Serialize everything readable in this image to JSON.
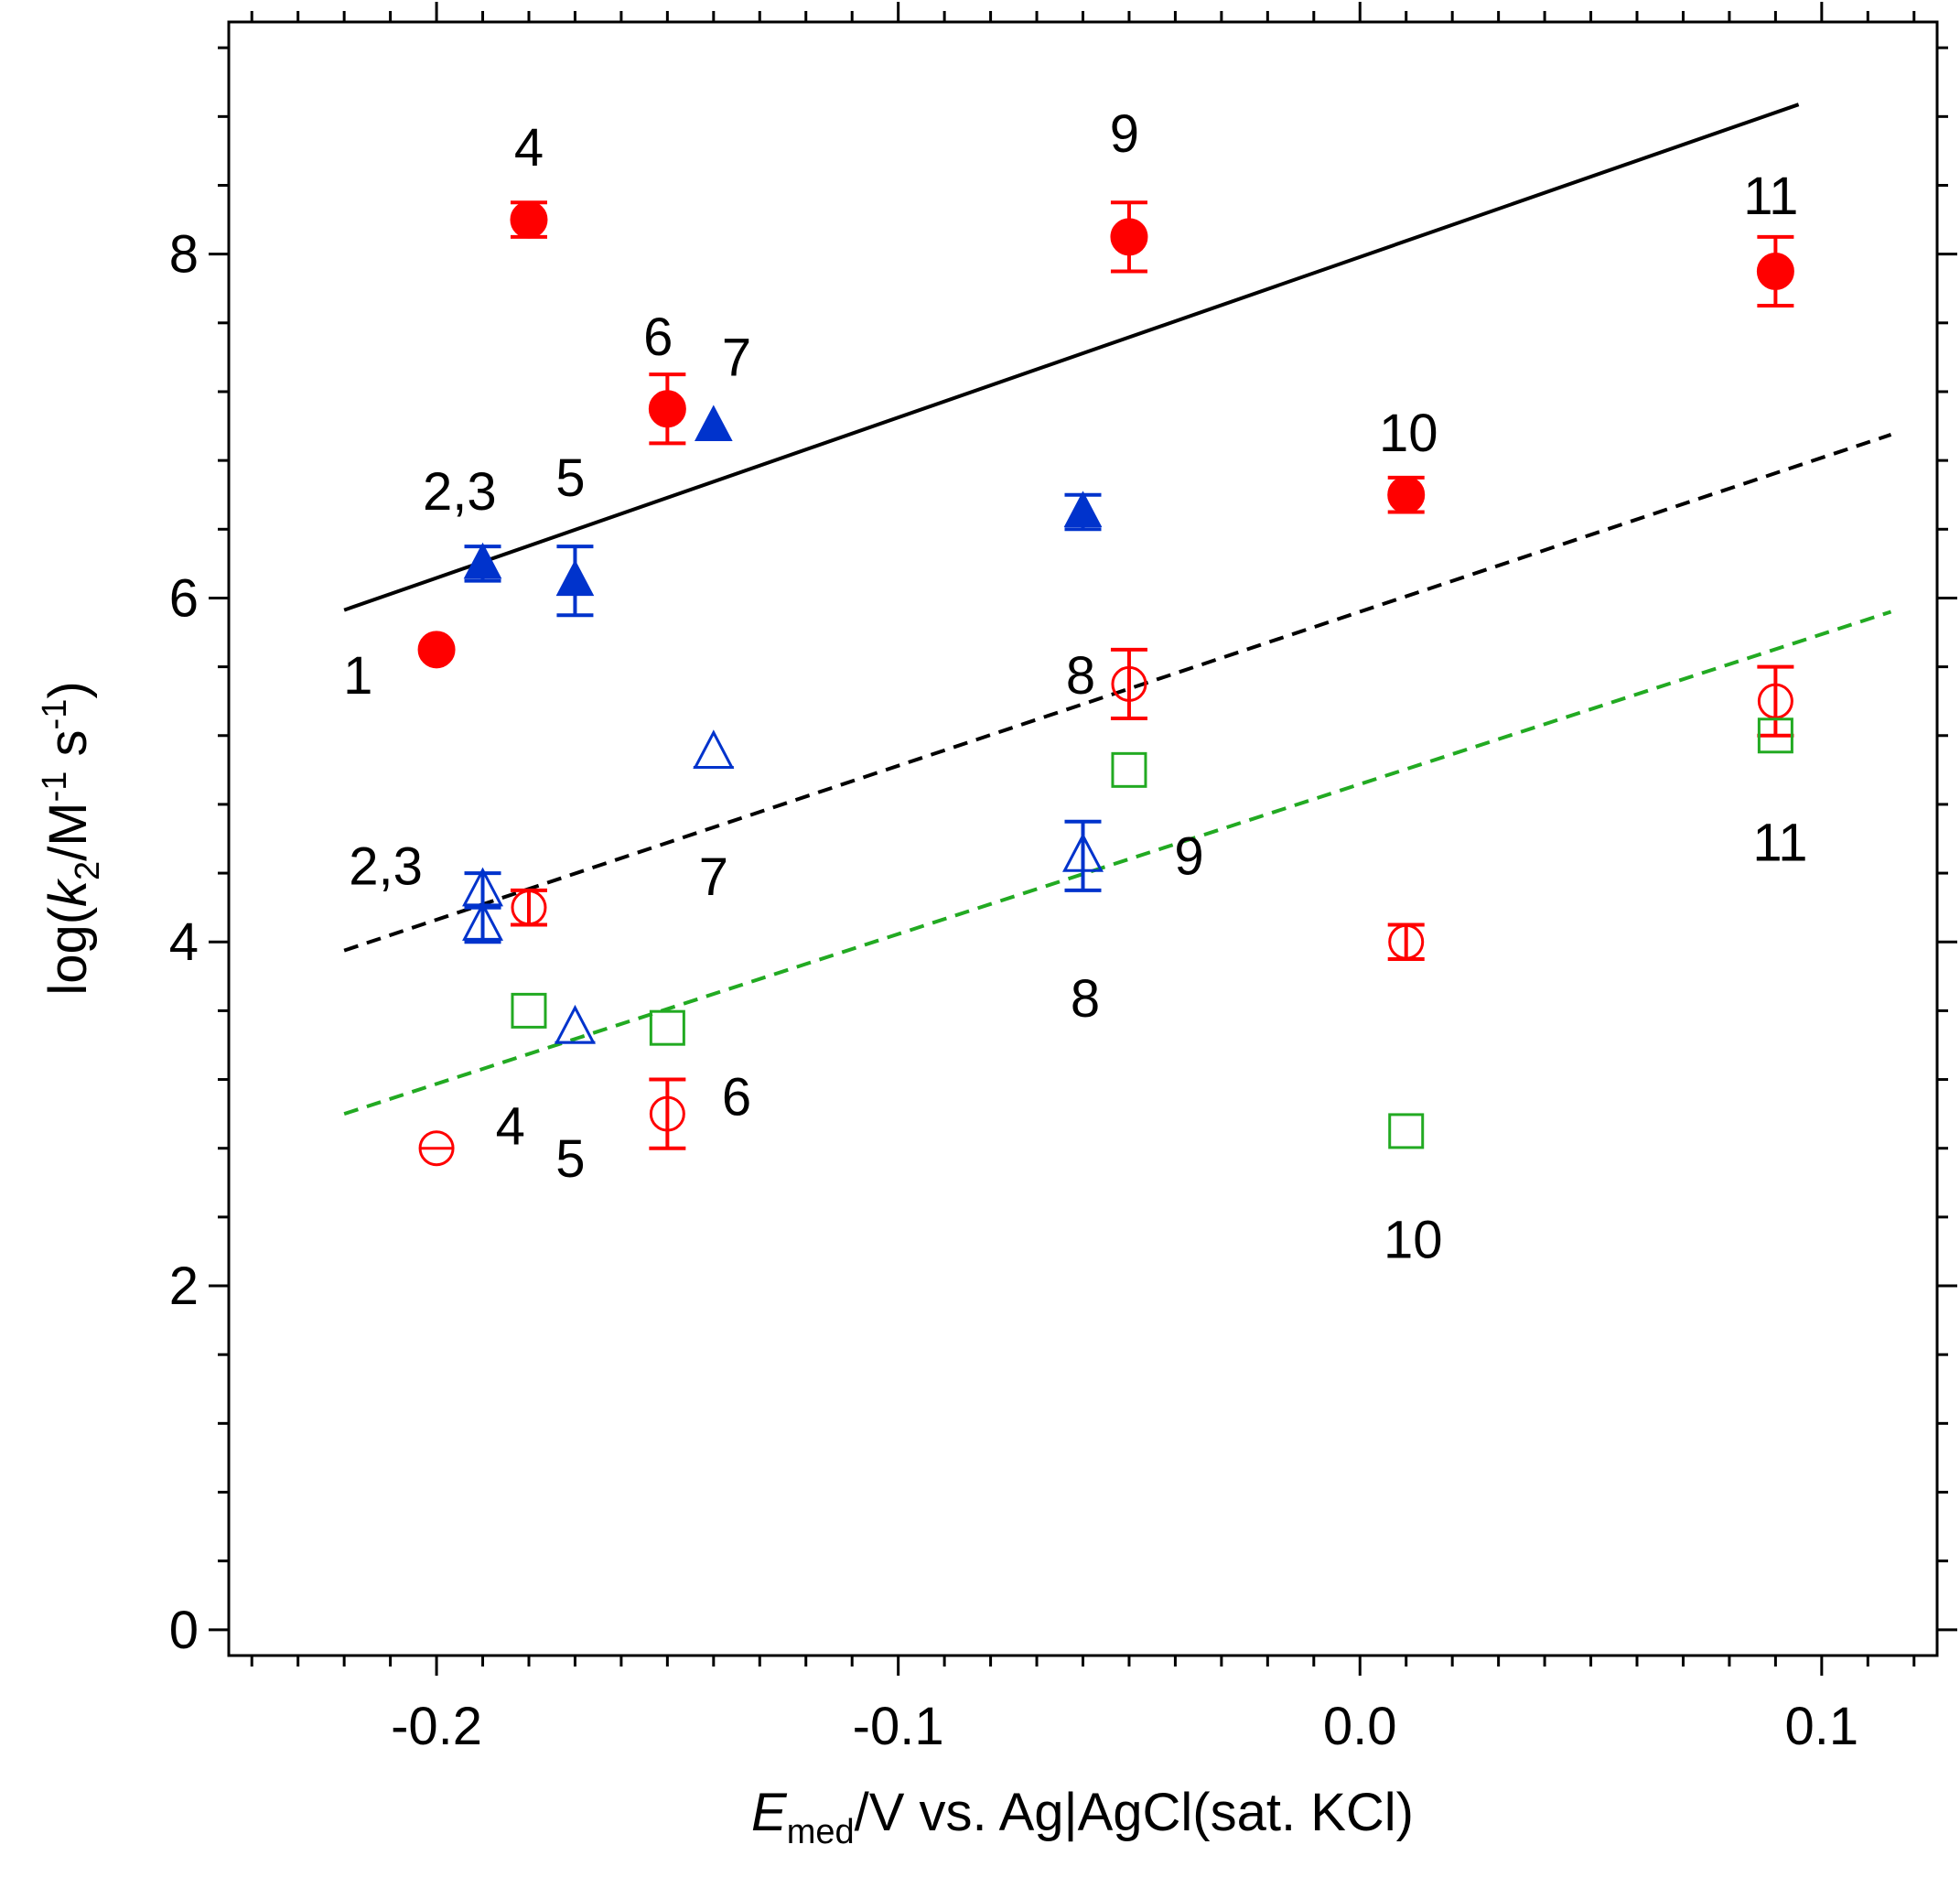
{
  "chart_data": {
    "type": "scatter",
    "title": "",
    "xlabel": {
      "main": "E",
      "sub": "med",
      "rest": "/V vs. Ag|AgCl(sat. KCl)"
    },
    "ylabel": {
      "pre": "log(",
      "k": "k",
      "k_sub": "2",
      "unit": "/M",
      "exp1": "-1",
      "s": " s",
      "exp2": "-1",
      "post": ")"
    },
    "xlim": [
      -0.245,
      0.125
    ],
    "ylim": [
      -0.15,
      9.35
    ],
    "xticks": [
      -0.2,
      -0.1,
      0.0,
      0.1
    ],
    "xtick_labels": [
      "-0.2",
      "-0.1",
      "0.0",
      "0.1"
    ],
    "yticks": [
      0,
      2,
      4,
      6,
      8
    ],
    "ytick_labels": [
      "0",
      "2",
      "4",
      "6",
      "8"
    ],
    "grid": false,
    "colors": {
      "red": "#ff0000",
      "blue": "#0033cc",
      "green": "#22aa22",
      "black": "#000000"
    },
    "fit_lines": [
      {
        "name": "fit-solid-black",
        "style": "solid",
        "color": "#000000",
        "x": [
          -0.22,
          0.095
        ],
        "y": [
          5.93,
          8.87
        ]
      },
      {
        "name": "fit-dashed-black",
        "style": "dashed",
        "color": "#000000",
        "x": [
          -0.22,
          0.115
        ],
        "y": [
          3.95,
          6.95
        ]
      },
      {
        "name": "fit-dashed-green",
        "style": "dashed",
        "color": "#22aa22",
        "x": [
          -0.22,
          0.115
        ],
        "y": [
          3.0,
          5.92
        ]
      }
    ],
    "series": [
      {
        "name": "red filled circles",
        "marker": "circle",
        "filled": true,
        "color": "#ff0000",
        "points": [
          {
            "x": -0.2,
            "y": 5.7,
            "err": 0
          },
          {
            "x": -0.18,
            "y": 8.2,
            "err": 0.1
          },
          {
            "x": -0.15,
            "y": 7.1,
            "err": 0.2
          },
          {
            "x": -0.05,
            "y": 8.1,
            "err": 0.2
          },
          {
            "x": 0.01,
            "y": 6.6,
            "err": 0.1
          },
          {
            "x": 0.09,
            "y": 7.9,
            "err": 0.2
          }
        ]
      },
      {
        "name": "blue filled triangles",
        "marker": "triangle",
        "filled": true,
        "color": "#0033cc",
        "points": [
          {
            "x": -0.19,
            "y": 6.2,
            "err": 0.1
          },
          {
            "x": -0.17,
            "y": 6.1,
            "err": 0.2
          },
          {
            "x": -0.14,
            "y": 7.0,
            "err": 0
          },
          {
            "x": -0.06,
            "y": 6.5,
            "err": 0.1
          }
        ]
      },
      {
        "name": "red open circles",
        "marker": "circle",
        "filled": false,
        "color": "#ff0000",
        "points": [
          {
            "x": -0.2,
            "y": 2.8,
            "err": 0
          },
          {
            "x": -0.18,
            "y": 4.2,
            "err": 0.1
          },
          {
            "x": -0.15,
            "y": 3.0,
            "err": 0.2
          },
          {
            "x": -0.05,
            "y": 5.5,
            "err": 0.2
          },
          {
            "x": 0.01,
            "y": 4.0,
            "err": 0.1
          },
          {
            "x": 0.09,
            "y": 5.4,
            "err": 0.2
          }
        ]
      },
      {
        "name": "blue open triangles",
        "marker": "triangle",
        "filled": false,
        "color": "#0033cc",
        "points": [
          {
            "x": -0.19,
            "y": 4.3,
            "err": 0.1
          },
          {
            "x": -0.19,
            "y": 4.1,
            "err": 0.1
          },
          {
            "x": -0.17,
            "y": 3.5,
            "err": 0
          },
          {
            "x": -0.14,
            "y": 5.1,
            "err": 0
          },
          {
            "x": -0.06,
            "y": 4.5,
            "err": 0.2
          }
        ]
      },
      {
        "name": "green open squares",
        "marker": "square",
        "filled": false,
        "color": "#22aa22",
        "points": [
          {
            "x": -0.18,
            "y": 3.6,
            "err": 0
          },
          {
            "x": -0.15,
            "y": 3.5,
            "err": 0
          },
          {
            "x": -0.05,
            "y": 5.0,
            "err": 0
          },
          {
            "x": 0.01,
            "y": 2.9,
            "err": 0
          },
          {
            "x": 0.09,
            "y": 5.2,
            "err": 0
          }
        ]
      }
    ],
    "annotations": [
      {
        "text": "4",
        "x": -0.18,
        "y": 8.62
      },
      {
        "text": "9",
        "x": -0.051,
        "y": 8.7
      },
      {
        "text": "11",
        "x": 0.089,
        "y": 8.34
      },
      {
        "text": "6",
        "x": -0.152,
        "y": 7.52
      },
      {
        "text": "7",
        "x": -0.135,
        "y": 7.4
      },
      {
        "text": "10",
        "x": 0.0105,
        "y": 6.96
      },
      {
        "text": "2,3",
        "x": -0.195,
        "y": 6.62
      },
      {
        "text": "5",
        "x": -0.171,
        "y": 6.7
      },
      {
        "text": "8",
        "x": -0.0605,
        "y": 5.55
      },
      {
        "text": "1",
        "x": -0.217,
        "y": 5.55
      },
      {
        "text": "2,3",
        "x": -0.211,
        "y": 4.44
      },
      {
        "text": "7",
        "x": -0.14,
        "y": 4.38
      },
      {
        "text": "9",
        "x": -0.037,
        "y": 4.5
      },
      {
        "text": "11",
        "x": 0.091,
        "y": 4.58
      },
      {
        "text": "8",
        "x": -0.0595,
        "y": 3.67
      },
      {
        "text": "4",
        "x": -0.184,
        "y": 2.93
      },
      {
        "text": "5",
        "x": -0.171,
        "y": 2.74
      },
      {
        "text": "6",
        "x": -0.135,
        "y": 3.1
      },
      {
        "text": "10",
        "x": 0.0115,
        "y": 2.27
      }
    ]
  }
}
